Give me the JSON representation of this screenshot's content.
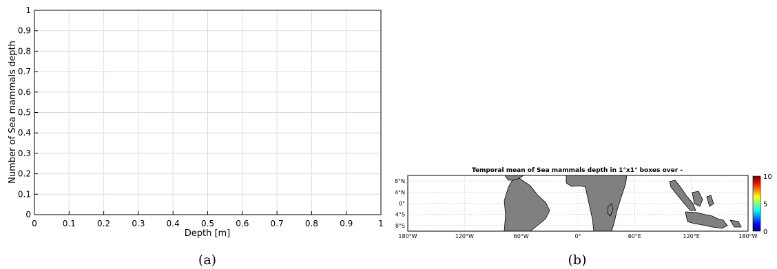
{
  "chart_data": [
    {
      "type": "line",
      "xlabel": "Depth [m]",
      "ylabel": "Number of Sea mammals  depth",
      "xlim": [
        0,
        1
      ],
      "ylim": [
        0,
        1
      ],
      "xticks": [
        "0",
        "0.1",
        "0.2",
        "0.3",
        "0.4",
        "0.5",
        "0.6",
        "0.7",
        "0.8",
        "0.9",
        "1"
      ],
      "yticks": [
        "0",
        "0.1",
        "0.2",
        "0.3",
        "0.4",
        "0.5",
        "0.6",
        "0.7",
        "0.8",
        "0.9",
        "1"
      ],
      "grid": true,
      "series": [],
      "caption": "(a)"
    },
    {
      "type": "heatmap",
      "title": "Temporal mean of Sea mammals  depth in 1°x1° boxes over -",
      "xticks": [
        "180°W",
        "120°W",
        "60°W",
        "0°",
        "60°E",
        "120°E",
        "180°W"
      ],
      "yticks": [
        "8°N",
        "4°N",
        "0°",
        "4°S",
        "8°S"
      ],
      "colorbar": {
        "min": 0,
        "max": 10,
        "ticks": [
          "10",
          "5",
          "0"
        ]
      },
      "grid": true,
      "caption": "(b)"
    }
  ],
  "colors": {
    "land": "#808080",
    "grid": "#d9d9d9",
    "coast": "#000000"
  }
}
